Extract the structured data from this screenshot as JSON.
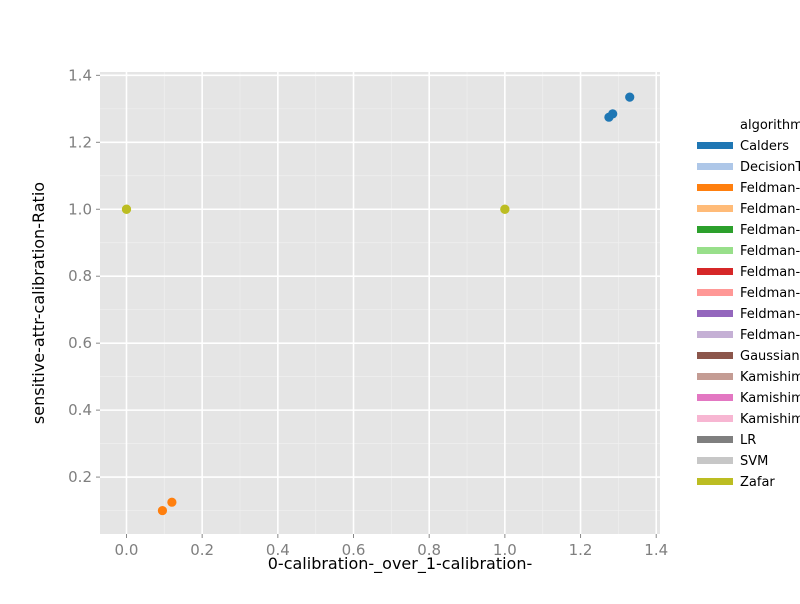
{
  "chart_data": {
    "type": "scatter",
    "title": "",
    "xlabel": "0-calibration-_over_1-calibration-",
    "ylabel": "sensitive-attr-calibration-Ratio",
    "xlim": [
      -0.07,
      1.41
    ],
    "ylim": [
      0.03,
      1.41
    ],
    "x_ticks": [
      "0.0",
      "0.2",
      "0.4",
      "0.6",
      "0.8",
      "1.0",
      "1.2",
      "1.4"
    ],
    "y_ticks": [
      "0.2",
      "0.4",
      "0.6",
      "0.8",
      "1.0",
      "1.2",
      "1.4"
    ],
    "grid": true,
    "legend_position": "right",
    "legend_title": "algorithm",
    "series": [
      {
        "name": "Calders",
        "color": "#1f77b4",
        "points": [
          [
            1.275,
            1.275
          ],
          [
            1.285,
            1.285
          ],
          [
            1.33,
            1.335
          ]
        ]
      },
      {
        "name": "DecisionTree",
        "color": "#aec7e8",
        "points": []
      },
      {
        "name": "Feldman-DecisionTree",
        "color": "#ff7f0e",
        "points": [
          [
            0.095,
            0.1
          ],
          [
            0.12,
            0.125
          ]
        ]
      },
      {
        "name": "Feldman-DecisionTree",
        "color": "#ffbb78",
        "points": []
      },
      {
        "name": "Feldman-GaussianNB",
        "color": "#2ca02c",
        "points": []
      },
      {
        "name": "Feldman-GaussianNB",
        "color": "#98df8a",
        "points": []
      },
      {
        "name": "Feldman-LR",
        "color": "#d62728",
        "points": []
      },
      {
        "name": "Feldman-LR",
        "color": "#ff9896",
        "points": []
      },
      {
        "name": "Feldman-SVM",
        "color": "#9467bd",
        "points": []
      },
      {
        "name": "Feldman-SVM",
        "color": "#c5b0d5",
        "points": []
      },
      {
        "name": "GaussianNB",
        "color": "#8c564b",
        "points": []
      },
      {
        "name": "Kamishima",
        "color": "#c49c94",
        "points": []
      },
      {
        "name": "Kamishima",
        "color": "#e377c2",
        "points": []
      },
      {
        "name": "Kamishima",
        "color": "#f7b6d2",
        "points": []
      },
      {
        "name": "LR",
        "color": "#7f7f7f",
        "points": []
      },
      {
        "name": "SVM",
        "color": "#c7c7c7",
        "points": []
      },
      {
        "name": "Zafar",
        "color": "#bcbd22",
        "points": [
          [
            0.0,
            1.0
          ],
          [
            0.0,
            1.0
          ],
          [
            1.0,
            1.0
          ],
          [
            1.0,
            1.0
          ]
        ]
      }
    ]
  }
}
